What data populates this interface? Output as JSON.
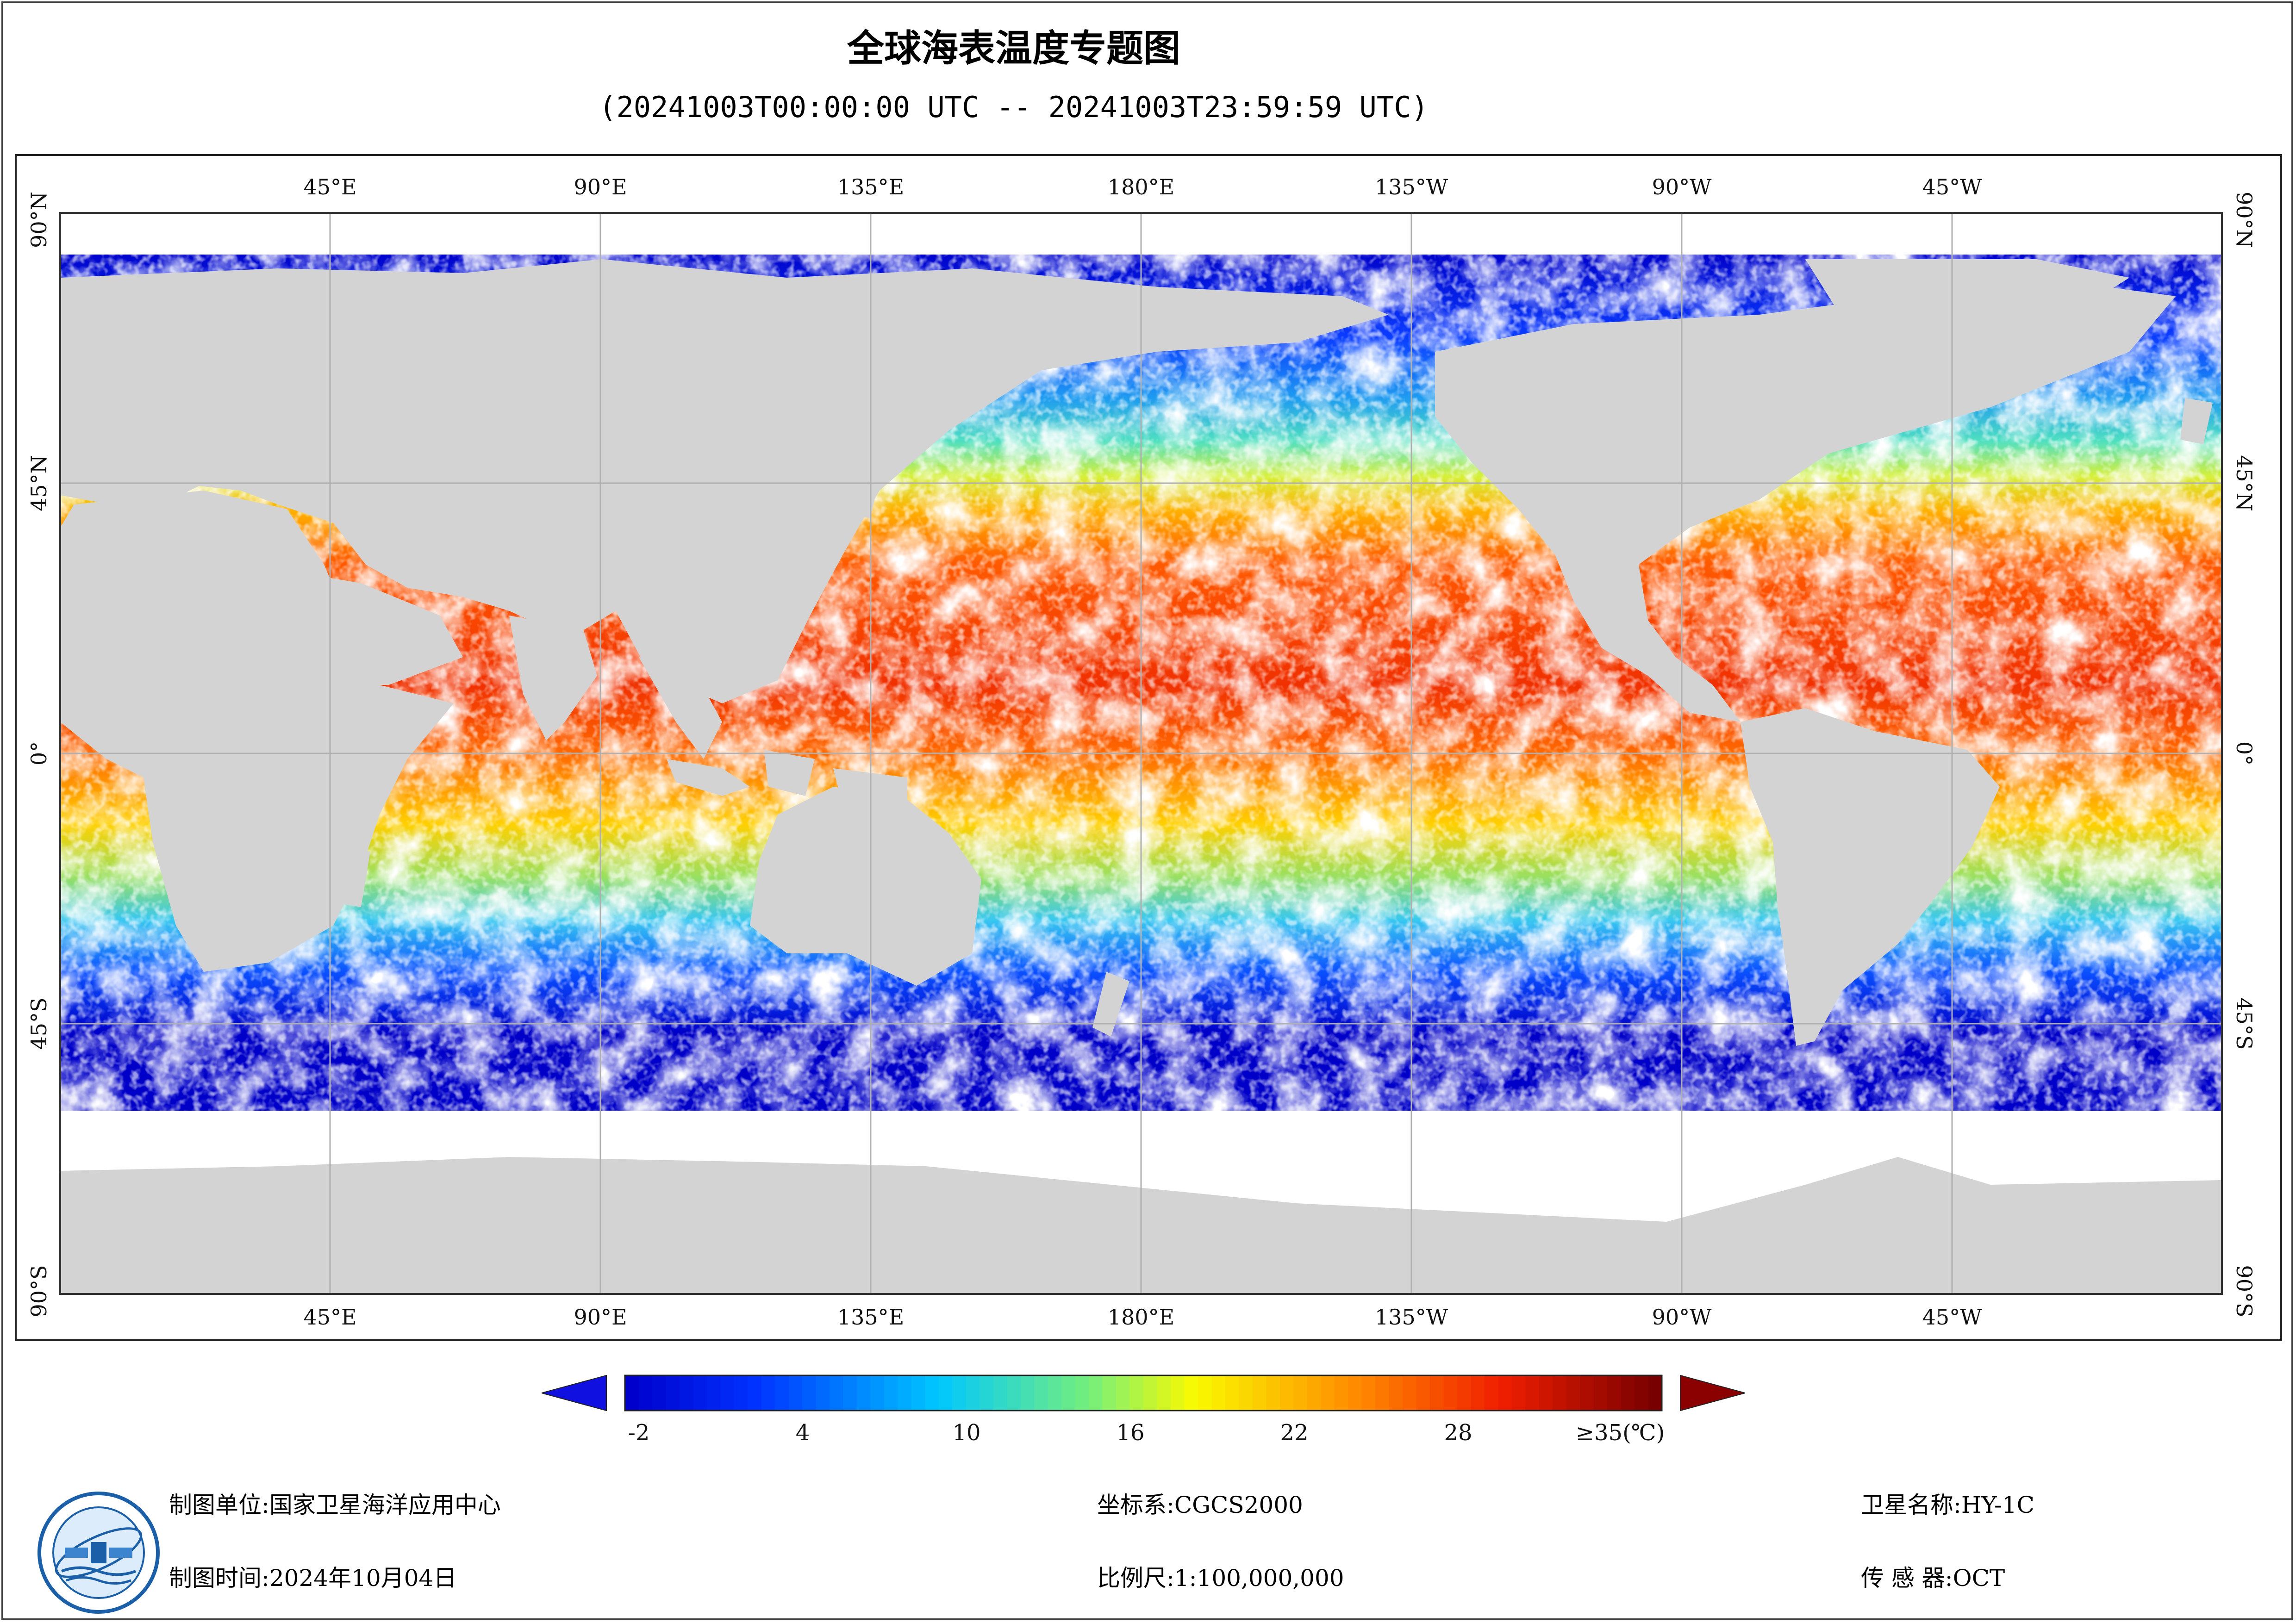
{
  "header": {
    "title": "全球海表温度专题图",
    "subtitle": "(20241003T00:00:00 UTC -- 20241003T23:59:59 UTC)"
  },
  "map": {
    "lon_labels": [
      "45°E",
      "90°E",
      "135°E",
      "180°E",
      "135°W",
      "90°W",
      "45°W"
    ],
    "lat_labels": [
      "90°N",
      "45°N",
      "0°",
      "45°S",
      "90°S"
    ],
    "land_color": "#d3d3d3",
    "grid_color": "#b0b0b0"
  },
  "colorbar": {
    "ticks": [
      "-2",
      "4",
      "10",
      "16",
      "22",
      "28",
      "≥35(℃)"
    ],
    "min": -3,
    "max": 35,
    "under_color": "#1010e0",
    "over_color": "#8b0000",
    "unit": "℃"
  },
  "footer": {
    "producer_label": "制图单位:",
    "producer_value": "国家卫星海洋应用中心",
    "time_label": "制图时间:",
    "time_value": "2024年10月04日",
    "crs_label": "坐标系:",
    "crs_value": "CGCS2000",
    "scale_label": "比例尺:",
    "scale_value": "1:100,000,000",
    "satellite_label": "卫星名称:",
    "satellite_value": "HY-1C",
    "sensor_label": "传 感 器:",
    "sensor_value": "OCT"
  },
  "logo": {
    "icon": "nsoas-logo-icon"
  }
}
